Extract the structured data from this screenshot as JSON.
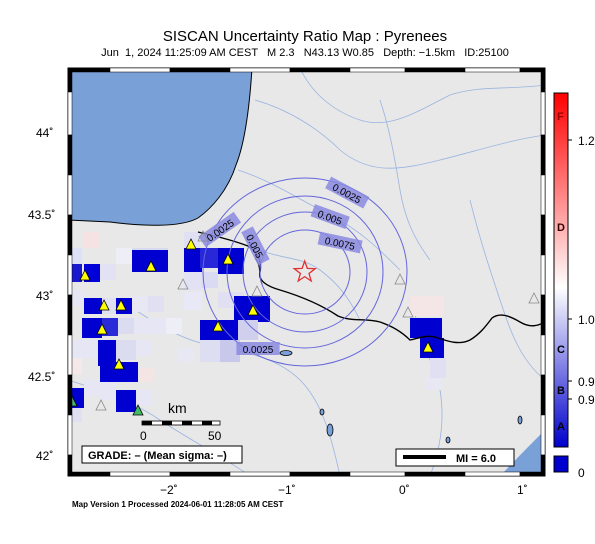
{
  "header": {
    "title": "SISCAN Uncertainty Ratio Map : Pyrenees",
    "subtitle": "Jun  1, 2024 11:25:09 AM CEST   M 2.3   N43.13 W0.85   Depth: −1.5km   ID:25100"
  },
  "footer": {
    "text": "Map Version 1 Processed 2024-06-01 11:28:05 AM CEST"
  },
  "map": {
    "lat_ticks": [
      "44˚",
      "43.5˚",
      "43˚",
      "42.5˚",
      "42˚"
    ],
    "lon_ticks": [
      "−2˚",
      "−1˚",
      "0˚",
      "1˚"
    ],
    "contour_labels": [
      "0.0025",
      "0.005",
      "0.0075",
      "0.005",
      "0.0025",
      "0.0025"
    ],
    "epicenter": {
      "lat": 43.13,
      "lon": -0.85
    },
    "scale_unit": "km",
    "scale_ticks": [
      "0",
      "50"
    ],
    "grade_text": "GRADE: – (Mean sigma: –)",
    "mi_text": "MI = 6.0",
    "colors": {
      "water": "#7aa0d8",
      "land": "#e8e8e8",
      "station_used": "#ffff00",
      "station_green": "#44bb66",
      "epicenter": "#e03030",
      "contour": "#6666dd"
    }
  },
  "colorbar": {
    "grade_labels": [
      "F",
      "D",
      "C",
      "B",
      "A"
    ],
    "value_labels": [
      "1.2",
      "1.0",
      "0.9",
      "0.9",
      "0"
    ],
    "colors": {
      "top": "#ff0000",
      "mid": "#ffffff",
      "bottom": "#0000cc"
    }
  }
}
